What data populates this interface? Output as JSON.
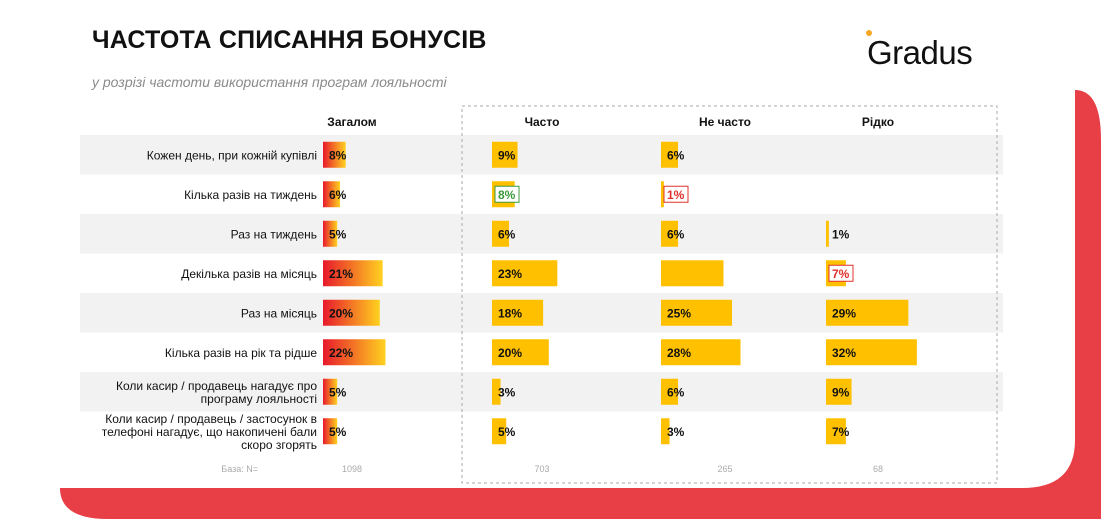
{
  "header": {
    "title": "ЧАСТОТА СПИСАННЯ БОНУСІВ",
    "subtitle": "у розрізі частоти використання програм лояльності",
    "logo_text": "Gradus"
  },
  "colors": {
    "overall_bar_start": "#e8192c",
    "overall_bar_end": "#ffd21f",
    "segment_bar": "#ffc000",
    "row_band": "#f2f2f2",
    "accent_red": "#e83e45",
    "green_box": "#3b9a3b",
    "red_box": "#e0302b"
  },
  "chart_data": {
    "type": "bar",
    "orientation": "horizontal",
    "categories": [
      "Кожен день, при кожній купівлі",
      "Кілька разів на тиждень",
      "Раз на тиждень",
      "Декілька разів на місяць",
      "Раз на місяць",
      "Кілька разів на рік та рідше",
      "Коли касир / продавець нагадує про програму лояльності",
      "Коли касир / продавець / застосунок в телефоні нагадує, що накопичені бали скоро згорять"
    ],
    "category_lines": [
      [
        "Кожен день, при кожній купівлі"
      ],
      [
        "Кілька разів на тиждень"
      ],
      [
        "Раз на тиждень"
      ],
      [
        "Декілька разів на місяць"
      ],
      [
        "Раз на місяць"
      ],
      [
        "Кілька разів на рік та рідше"
      ],
      [
        "Коли касир / продавець нагадує про",
        "програму лояльності"
      ],
      [
        "Коли касир / продавець / застосунок в",
        "телефоні нагадує, що накопичені бали",
        "скоро згорять"
      ]
    ],
    "series": [
      {
        "name": "Загалом",
        "values": [
          8,
          6,
          5,
          21,
          20,
          22,
          5,
          5
        ],
        "labels": [
          "8%",
          "6%",
          "5%",
          "21%",
          "20%",
          "22%",
          "5%",
          "5%"
        ],
        "highlights": [
          null,
          null,
          null,
          null,
          null,
          null,
          null,
          null
        ],
        "base": "1098"
      },
      {
        "name": "Часто",
        "values": [
          9,
          8,
          6,
          23,
          18,
          20,
          3,
          5
        ],
        "labels": [
          "9%",
          "8%",
          "6%",
          "23%",
          "18%",
          "20%",
          "3%",
          "5%"
        ],
        "highlights": [
          null,
          "higher",
          null,
          null,
          null,
          null,
          null,
          null
        ],
        "base": "703"
      },
      {
        "name": "Не часто",
        "values": [
          6,
          1,
          6,
          22,
          25,
          28,
          6,
          3
        ],
        "labels": [
          "6%",
          "1%",
          "6%",
          "",
          "25%",
          "28%",
          "6%",
          "3%"
        ],
        "highlights": [
          null,
          "lower",
          null,
          null,
          null,
          null,
          null,
          null
        ],
        "base": "265"
      },
      {
        "name": "Рідко",
        "values": [
          0,
          0,
          1,
          7,
          29,
          32,
          9,
          7
        ],
        "labels": [
          "",
          "",
          "1%",
          "7%",
          "29%",
          "32%",
          "9%",
          "7%"
        ],
        "highlights": [
          null,
          null,
          null,
          "lower",
          null,
          null,
          null,
          null
        ],
        "base": "68"
      }
    ],
    "base_label": "База: N=",
    "value_unit": "%",
    "xlim": [
      0,
      100
    ],
    "grid": false,
    "legend": "none"
  }
}
